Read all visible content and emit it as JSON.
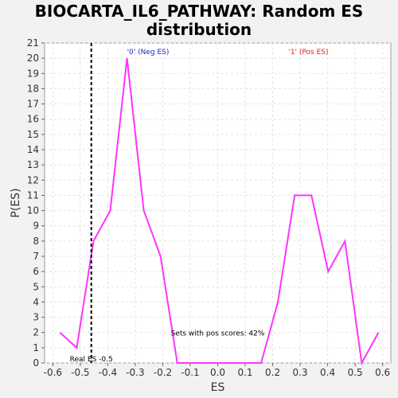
{
  "chart_data": {
    "type": "line",
    "title_line1": "BIOCARTA_IL6_PATHWAY: Random ES",
    "title_line2": "distribution",
    "xlabel": "ES",
    "ylabel": "P(ES)",
    "xlim": [
      -0.63,
      0.63
    ],
    "ylim": [
      0,
      21
    ],
    "xticks": [
      -0.6,
      -0.5,
      -0.4,
      -0.3,
      -0.2,
      -0.1,
      0.0,
      0.1,
      0.2,
      0.3,
      0.4,
      0.5,
      0.6
    ],
    "xtick_labels": [
      "-0.6",
      "-0.5",
      "-0.4",
      "-0.3",
      "-0.2",
      "-0.1",
      "0.0",
      "0.1",
      "0.2",
      "0.3",
      "0.4",
      "0.5",
      "0.6"
    ],
    "yticks": [
      0,
      1,
      2,
      3,
      4,
      5,
      6,
      7,
      8,
      9,
      10,
      11,
      12,
      13,
      14,
      15,
      16,
      17,
      18,
      19,
      20,
      21
    ],
    "grid": true,
    "series": [
      {
        "color": "#ff33ff",
        "x": [
          -0.574,
          -0.513,
          -0.452,
          -0.391,
          -0.33,
          -0.269,
          -0.208,
          -0.147,
          -0.086,
          -0.025,
          0.036,
          0.097,
          0.158,
          0.219,
          0.28,
          0.341,
          0.402,
          0.463,
          0.524,
          0.585
        ],
        "y": [
          2,
          1,
          8,
          10,
          20,
          10,
          7,
          0,
          0,
          0,
          0,
          0,
          0,
          4,
          11,
          11,
          6,
          8,
          0,
          2
        ]
      }
    ],
    "real_es": {
      "value": -0.46,
      "label": "Real ES -0.5",
      "color": "#000000"
    },
    "annotations": {
      "neg_label": "'0' (Neg ES)",
      "neg_color": "#2222cc",
      "pos_label": "'1' (Pos ES)",
      "pos_color": "#dd2222",
      "sets_text": "Sets with pos scores: 42%"
    }
  }
}
